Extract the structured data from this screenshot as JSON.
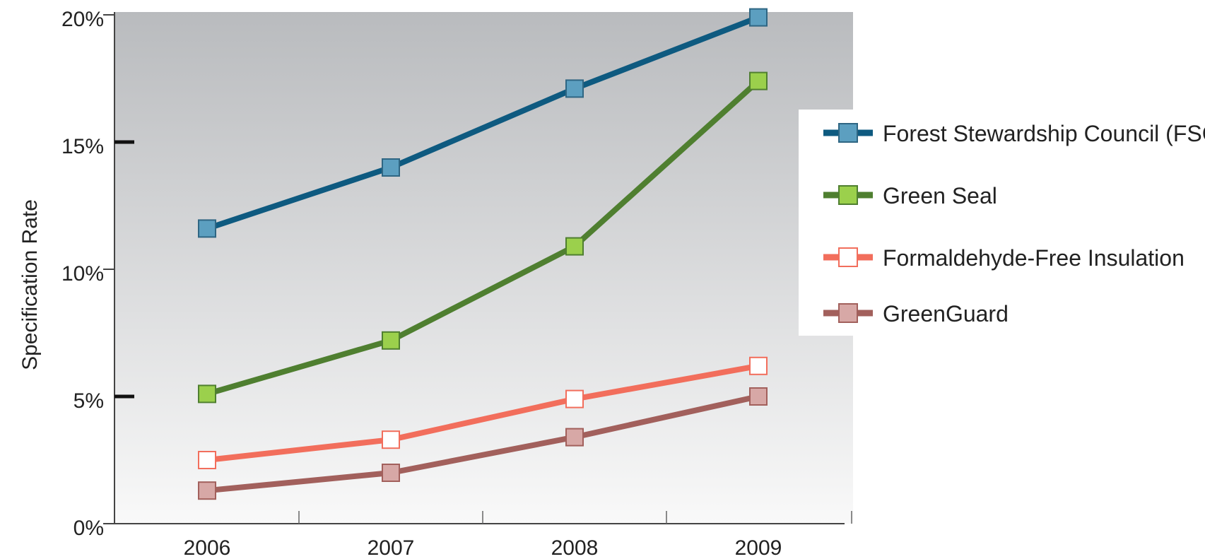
{
  "chart_data": {
    "type": "line",
    "title": "",
    "xlabel": "",
    "ylabel": "Specification Rate",
    "categories": [
      "2006",
      "2007",
      "2008",
      "2009"
    ],
    "ylim": [
      0,
      20
    ],
    "yticks": [
      {
        "value": 0,
        "label": "0%"
      },
      {
        "value": 5,
        "label": "5%"
      },
      {
        "value": 10,
        "label": "10%"
      },
      {
        "value": 15,
        "label": "15%"
      },
      {
        "value": 20,
        "label": "20%"
      }
    ],
    "legend_position": "right",
    "series": [
      {
        "name": "Forest Stewardship Council (FSC)",
        "values": [
          11.6,
          14.0,
          17.1,
          19.9
        ],
        "line_color": "#0e5a80",
        "marker_fill": "#5c9fc0",
        "marker_stroke": "#2f6683"
      },
      {
        "name": "Green Seal",
        "values": [
          5.1,
          7.2,
          10.9,
          17.4
        ],
        "line_color": "#4f7f30",
        "marker_fill": "#9bd04c",
        "marker_stroke": "#4f7f30"
      },
      {
        "name": "Formaldehyde-Free Insulation",
        "values": [
          2.5,
          3.3,
          4.9,
          6.2
        ],
        "line_color": "#f26e5c",
        "marker_fill": "#ffffff",
        "marker_stroke": "#f26e5c"
      },
      {
        "name": "GreenGuard",
        "values": [
          1.3,
          2.0,
          3.4,
          5.0
        ],
        "line_color": "#a2605c",
        "marker_fill": "#d7a8a6",
        "marker_stroke": "#a2605c"
      }
    ]
  }
}
